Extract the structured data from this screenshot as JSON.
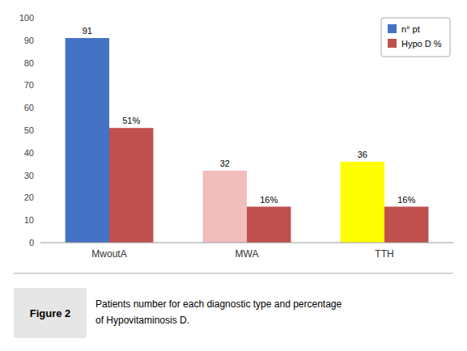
{
  "chart_data": {
    "type": "bar",
    "categories": [
      "MwoutA",
      "MWA",
      "TTH"
    ],
    "series": [
      {
        "name": "n° pt",
        "color": "#4472C4",
        "colors": [
          "#4472C4",
          "#F2BDBD",
          "#FFFF00"
        ],
        "values": [
          91,
          32,
          36
        ]
      },
      {
        "name": "Hypo D %",
        "color": "#C0504D",
        "values": [
          51,
          16,
          16
        ],
        "value_labels": [
          "51%",
          "16%",
          "16%"
        ]
      }
    ],
    "ylim": [
      0,
      100
    ],
    "yticks": [
      0,
      10,
      20,
      30,
      40,
      50,
      60,
      70,
      80,
      90,
      100
    ],
    "grid": false,
    "legend": "upper right",
    "data_labels": true,
    "figure_label": "Figure 2",
    "caption": [
      "Patients number for each diagnostic type and percentage",
      "of Hypovitaminosis D."
    ]
  }
}
